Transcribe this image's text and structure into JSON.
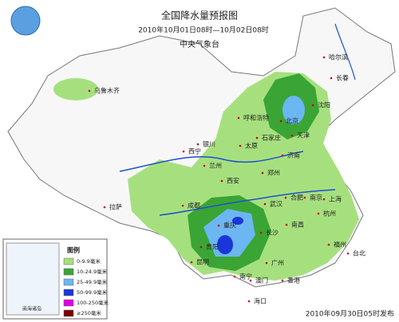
{
  "header": {
    "title": "全国降水量预报图",
    "period": "2010年10月01日08时—10月02日08时",
    "agency": "中央气象台"
  },
  "cities": [
    "乌鲁木齐",
    "哈尔滨",
    "长春",
    "沈阳",
    "呼和浩特",
    "北京",
    "天津",
    "石家庄",
    "太原",
    "银川",
    "西宁",
    "兰州",
    "济南",
    "郑州",
    "西安",
    "合肥",
    "南京",
    "上海",
    "杭州",
    "武汉",
    "成都",
    "重庆",
    "长沙",
    "南昌",
    "贵阳",
    "昆明",
    "福州",
    "台北",
    "南宁",
    "广州",
    "香港",
    "澳门",
    "海口",
    "拉萨"
  ],
  "legend": {
    "title": "图例",
    "items": [
      {
        "label": "0-9.9毫米",
        "color": "#a6e07e"
      },
      {
        "label": "10-24.9毫米",
        "color": "#3aa534"
      },
      {
        "label": "25-49.9毫米",
        "color": "#6cb6f2"
      },
      {
        "label": "50-99.9毫米",
        "color": "#1b36d8"
      },
      {
        "label": "100-250毫米",
        "color": "#e000e0"
      },
      {
        "label": "≥250毫米",
        "color": "#7a0000"
      }
    ]
  },
  "inset": {
    "label": "南海诸岛"
  },
  "footer": {
    "issued": "2010年09月30日05时发布"
  }
}
